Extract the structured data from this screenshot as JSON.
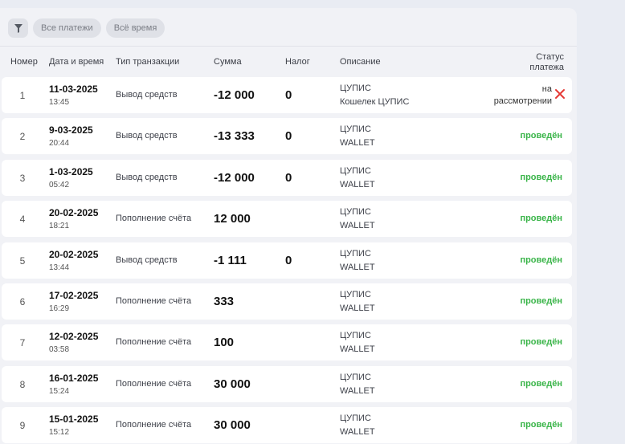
{
  "filters": {
    "chip_all_payments": "Все платежи",
    "chip_all_time": "Всё время",
    "filter_icon": "filter-icon"
  },
  "table": {
    "headers": {
      "number": "Номер",
      "datetime": "Дата и время",
      "type": "Тип транзакции",
      "amount": "Сумма",
      "tax": "Налог",
      "description": "Описание",
      "status_line1": "Статус",
      "status_line2": "платежа"
    },
    "rows": [
      {
        "number": "1",
        "date": "11-03-2025",
        "time": "13:45",
        "type": "Вывод средств",
        "amount": "-12 000",
        "tax": "0",
        "desc1": "ЦУПИС",
        "desc2": "Кошелек ЦУПИС",
        "status1": "на",
        "status2": "рассмотрении",
        "pending": true
      },
      {
        "number": "2",
        "date": "9-03-2025",
        "time": "20:44",
        "type": "Вывод средств",
        "amount": "-13 333",
        "tax": "0",
        "desc1": "ЦУПИС",
        "desc2": "WALLET",
        "status": "проведён"
      },
      {
        "number": "3",
        "date": "1-03-2025",
        "time": "05:42",
        "type": "Вывод средств",
        "amount": "-12 000",
        "tax": "0",
        "desc1": "ЦУПИС",
        "desc2": "WALLET",
        "status": "проведён"
      },
      {
        "number": "4",
        "date": "20-02-2025",
        "time": "18:21",
        "type": "Пополнение счёта",
        "amount": "12 000",
        "tax": "",
        "desc1": "ЦУПИС",
        "desc2": "WALLET",
        "status": "проведён"
      },
      {
        "number": "5",
        "date": "20-02-2025",
        "time": "13:44",
        "type": "Вывод средств",
        "amount": "-1 111",
        "tax": "0",
        "desc1": "ЦУПИС",
        "desc2": "WALLET",
        "status": "проведён"
      },
      {
        "number": "6",
        "date": "17-02-2025",
        "time": "16:29",
        "type": "Пополнение счёта",
        "amount": "333",
        "tax": "",
        "desc1": "ЦУПИС",
        "desc2": "WALLET",
        "status": "проведён"
      },
      {
        "number": "7",
        "date": "12-02-2025",
        "time": "03:58",
        "type": "Пополнение счёта",
        "amount": "100",
        "tax": "",
        "desc1": "ЦУПИС",
        "desc2": "WALLET",
        "status": "проведён"
      },
      {
        "number": "8",
        "date": "16-01-2025",
        "time": "15:24",
        "type": "Пополнение счёта",
        "amount": "30 000",
        "tax": "",
        "desc1": "ЦУПИС",
        "desc2": "WALLET",
        "status": "проведён"
      },
      {
        "number": "9",
        "date": "15-01-2025",
        "time": "15:12",
        "type": "Пополнение счёта",
        "amount": "30 000",
        "tax": "",
        "desc1": "ЦУПИС",
        "desc2": "WALLET",
        "status": "проведён"
      }
    ]
  },
  "colors": {
    "status_done": "#3bb54a",
    "cancel_icon": "#e53935"
  }
}
